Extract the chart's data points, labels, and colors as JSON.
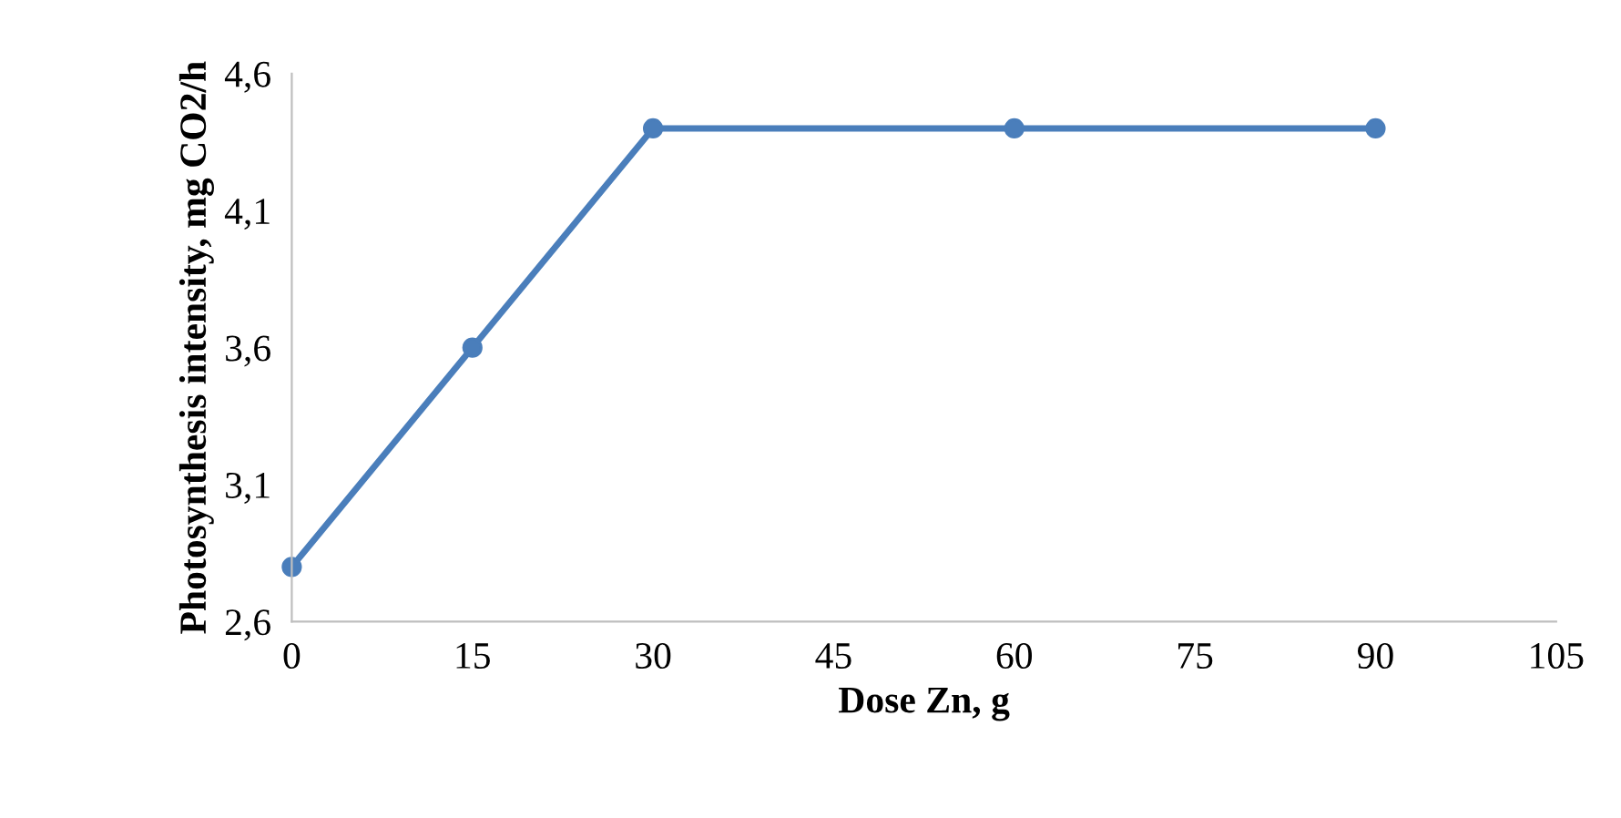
{
  "chart_data": {
    "type": "line",
    "xlabel": "Dose Zn, g",
    "ylabel": "Photosynthesis intensity, mg CO2/h",
    "x": [
      0,
      15,
      30,
      60,
      90
    ],
    "series": [
      {
        "color": "#4a7ebb",
        "values": [
          2.8,
          3.6,
          4.4,
          4.4,
          4.4
        ]
      }
    ],
    "xlim": [
      0,
      105
    ],
    "xticks": [
      0,
      15,
      30,
      45,
      60,
      75,
      90,
      105
    ],
    "ylim": [
      2.6,
      4.6
    ],
    "yticks": [
      {
        "value": 2.6,
        "label": "2,6"
      },
      {
        "value": 3.1,
        "label": "3,1"
      },
      {
        "value": 3.6,
        "label": "3,6"
      },
      {
        "value": 4.1,
        "label": "4,1"
      },
      {
        "value": 4.6,
        "label": "4,6"
      }
    ],
    "marker": "circle",
    "line_style": "solid",
    "grid": false,
    "legend": false
  }
}
